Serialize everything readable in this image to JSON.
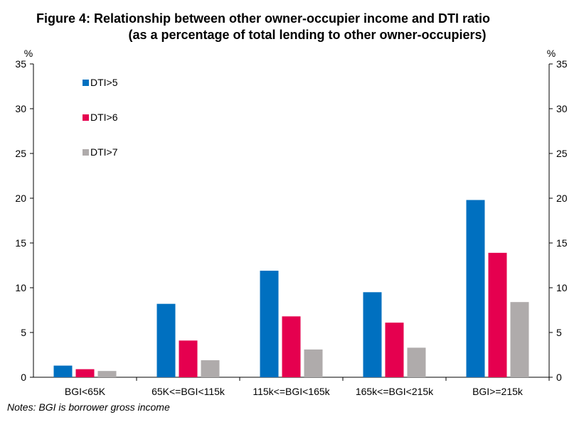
{
  "title_line1": "Figure 4: Relationship between other owner-occupier income and DTI ratio",
  "title_line2": "(as a percentage of total lending to other owner-occupiers)",
  "note": "Notes: BGI is borrower gross income",
  "chart_data": {
    "type": "bar",
    "categories": [
      "BGI<65K",
      "65K<=BGI<115k",
      "115k<=BGI<165k",
      "165k<=BGI<215k",
      "BGI>=215k"
    ],
    "series": [
      {
        "name": "DTI>5",
        "color": "#0070c0",
        "values": [
          1.3,
          8.2,
          11.9,
          9.5,
          19.8
        ]
      },
      {
        "name": "DTI>6",
        "color": "#e5004f",
        "values": [
          0.9,
          4.1,
          6.8,
          6.1,
          13.9
        ]
      },
      {
        "name": "DTI>7",
        "color": "#afabab",
        "values": [
          0.7,
          1.9,
          3.1,
          3.3,
          8.4
        ]
      }
    ],
    "ylabel_left": "%",
    "ylabel_right": "%",
    "ylim": [
      0,
      35
    ],
    "yticks": [
      0,
      5,
      10,
      15,
      20,
      25,
      30,
      35
    ],
    "legend_position": "top-left",
    "grid": false
  }
}
